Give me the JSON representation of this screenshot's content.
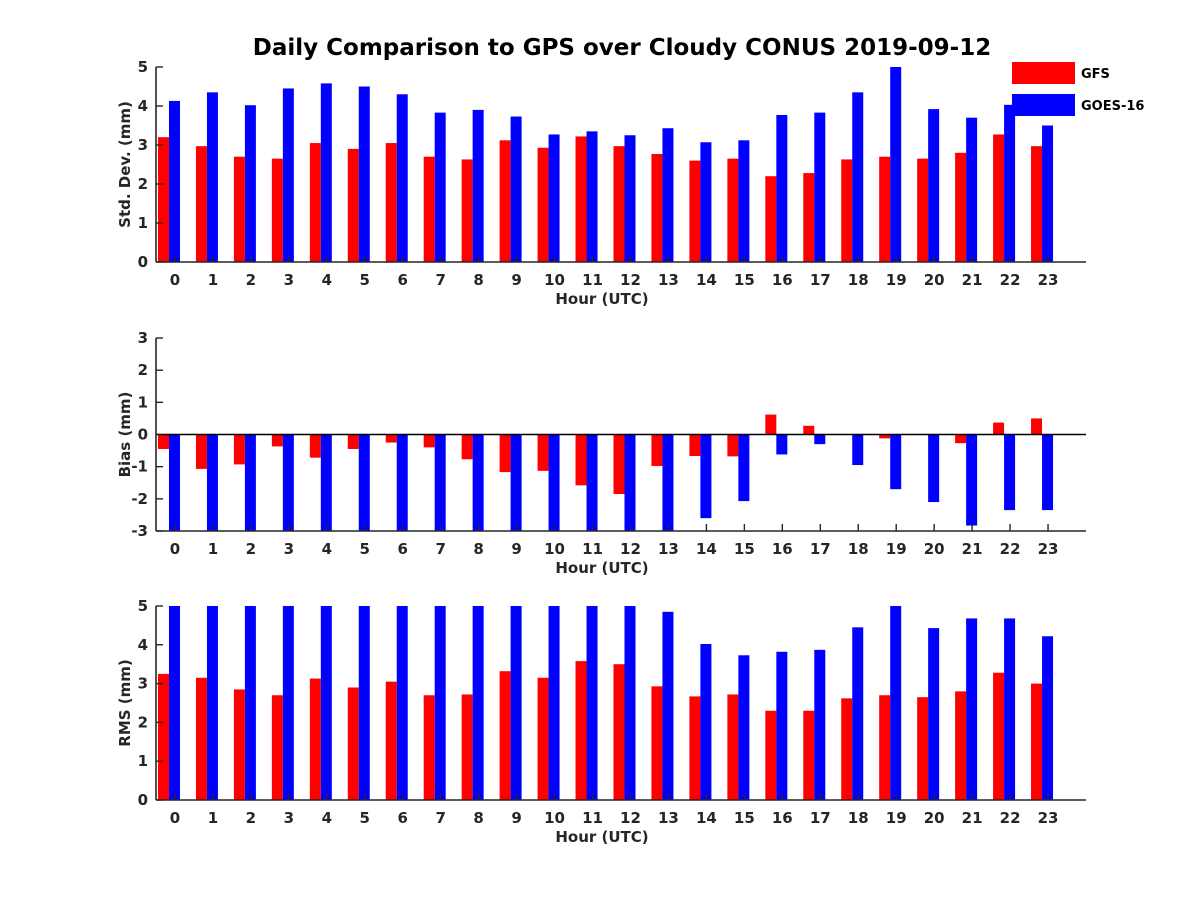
{
  "title": "Daily Comparison to GPS over Cloudy CONUS 2019-09-12",
  "colors": {
    "GFS": "#ff0000",
    "GOES-16": "#0000ff"
  },
  "chart_data": [
    {
      "type": "bar",
      "title": "Daily Comparison to GPS over Cloudy CONUS 2019-09-12",
      "xlabel": "Hour (UTC)",
      "ylabel": "Std. Dev. (mm)",
      "ylim": [
        0,
        5
      ],
      "yticks": [
        "0",
        "1",
        "2",
        "3",
        "4",
        "5"
      ],
      "categories": [
        "0",
        "1",
        "2",
        "3",
        "4",
        "5",
        "6",
        "7",
        "8",
        "9",
        "10",
        "11",
        "12",
        "13",
        "14",
        "15",
        "16",
        "17",
        "18",
        "19",
        "20",
        "21",
        "22",
        "23"
      ],
      "legend": "top-right",
      "series": [
        {
          "name": "GFS",
          "values": [
            3.2,
            2.97,
            2.7,
            2.65,
            3.05,
            2.9,
            3.05,
            2.7,
            2.63,
            3.12,
            2.93,
            3.22,
            2.97,
            2.77,
            2.6,
            2.65,
            2.2,
            2.28,
            2.63,
            2.7,
            2.65,
            2.8,
            3.27,
            2.97
          ]
        },
        {
          "name": "GOES-16",
          "values": [
            4.13,
            4.35,
            4.02,
            4.45,
            4.58,
            4.5,
            4.3,
            3.83,
            3.9,
            3.73,
            3.27,
            3.35,
            3.25,
            3.43,
            3.07,
            3.12,
            3.77,
            3.83,
            4.35,
            5.0,
            3.92,
            3.7,
            4.03,
            3.5
          ]
        }
      ]
    },
    {
      "type": "bar",
      "xlabel": "Hour (UTC)",
      "ylabel": "Bias (mm)",
      "ylim": [
        -3,
        3
      ],
      "yticks": [
        "-3",
        "-2",
        "-1",
        "0",
        "1",
        "2",
        "3"
      ],
      "categories": [
        "0",
        "1",
        "2",
        "3",
        "4",
        "5",
        "6",
        "7",
        "8",
        "9",
        "10",
        "11",
        "12",
        "13",
        "14",
        "15",
        "16",
        "17",
        "18",
        "19",
        "20",
        "21",
        "22",
        "23"
      ],
      "series": [
        {
          "name": "GFS",
          "values": [
            -0.45,
            -1.07,
            -0.93,
            -0.37,
            -0.72,
            -0.45,
            -0.25,
            -0.4,
            -0.77,
            -1.17,
            -1.13,
            -1.58,
            -1.85,
            -0.98,
            -0.67,
            -0.68,
            0.62,
            0.27,
            0.0,
            -0.12,
            0.0,
            -0.27,
            0.37,
            0.5
          ]
        },
        {
          "name": "GOES-16",
          "values": [
            -3.0,
            -3.0,
            -3.0,
            -3.0,
            -3.0,
            -3.0,
            -3.0,
            -3.0,
            -3.0,
            -3.0,
            -3.0,
            -3.0,
            -3.0,
            -3.0,
            -2.6,
            -2.07,
            -0.62,
            -0.3,
            -0.95,
            -1.7,
            -2.1,
            -2.83,
            -2.35,
            -2.35
          ]
        }
      ]
    },
    {
      "type": "bar",
      "xlabel": "Hour (UTC)",
      "ylabel": "RMS (mm)",
      "ylim": [
        0,
        5
      ],
      "yticks": [
        "0",
        "1",
        "2",
        "3",
        "4",
        "5"
      ],
      "categories": [
        "0",
        "1",
        "2",
        "3",
        "4",
        "5",
        "6",
        "7",
        "8",
        "9",
        "10",
        "11",
        "12",
        "13",
        "14",
        "15",
        "16",
        "17",
        "18",
        "19",
        "20",
        "21",
        "22",
        "23"
      ],
      "series": [
        {
          "name": "GFS",
          "values": [
            3.25,
            3.15,
            2.85,
            2.7,
            3.13,
            2.9,
            3.05,
            2.7,
            2.72,
            3.32,
            3.15,
            3.58,
            3.5,
            2.93,
            2.67,
            2.72,
            2.3,
            2.3,
            2.62,
            2.7,
            2.65,
            2.8,
            3.28,
            3.0
          ]
        },
        {
          "name": "GOES-16",
          "values": [
            5.0,
            5.0,
            5.0,
            5.0,
            5.0,
            5.0,
            5.0,
            5.0,
            5.0,
            5.0,
            5.0,
            5.0,
            5.0,
            4.85,
            4.02,
            3.73,
            3.82,
            3.87,
            4.45,
            5.0,
            4.43,
            4.68,
            4.68,
            4.22
          ]
        }
      ]
    }
  ]
}
